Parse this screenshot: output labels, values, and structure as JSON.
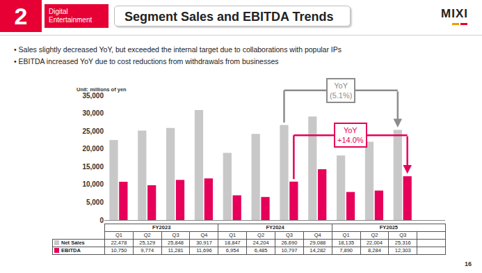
{
  "slide": {
    "section_number": "2",
    "section": "Digital Entertainment",
    "title": "Segment Sales and EBITDA Trends",
    "logo": "MIXI",
    "bullets": [
      "• Sales slightly decreased YoY, but exceeded the internal target due to collaborations with popular IPs",
      "• EBITDA increased YoY due to cost reductions from withdrawals from businesses"
    ],
    "page_number": "16"
  },
  "chart_data": {
    "type": "bar",
    "ylabel": "Unit: millions of yen",
    "categories": [
      "Q1",
      "Q2",
      "Q3",
      "Q4",
      "Q1",
      "Q2",
      "Q3",
      "Q4",
      "Q1",
      "Q2",
      "Q3",
      null
    ],
    "x_groups": [
      "FY2023",
      "FY2023",
      "FY2023",
      "FY2023",
      "FY2024",
      "FY2024",
      "FY2024",
      "FY2024",
      "FY2025",
      "FY2025",
      "FY2025",
      "FY2025"
    ],
    "series": [
      {
        "name": "Net Sales",
        "color": "#c8c8c8",
        "values": [
          22478,
          25129,
          25848,
          30917,
          18847,
          24204,
          26690,
          29088,
          18135,
          22004,
          25316,
          null
        ],
        "value_labels": [
          "22,478",
          "25,129",
          "25,848",
          "30,917",
          "18,847",
          "24,204",
          "26,690",
          "29,088",
          "18,135",
          "22,004",
          "25,316",
          null
        ]
      },
      {
        "name": "EBITDA",
        "color": "#e6005a",
        "values": [
          10750,
          9774,
          11281,
          11696,
          6954,
          6485,
          10797,
          14282,
          7890,
          8284,
          12303,
          null
        ],
        "value_labels": [
          "10,750",
          "9,774",
          "11,281",
          "11,696",
          "6,954",
          "6,485",
          "10,797",
          "14,282",
          "7,890",
          "8,284",
          "12,303",
          null
        ]
      }
    ],
    "ylim": [
      0,
      35000
    ],
    "yticks": [
      0,
      {
        "value": 5000,
        "label": "5,000"
      },
      {
        "value": 10000,
        "label": "10,000"
      },
      {
        "value": 15000,
        "label": "15,000"
      },
      {
        "value": 20000,
        "label": "20,000"
      },
      {
        "value": 25000,
        "label": "25,000"
      },
      {
        "value": 30000,
        "label": "30,000"
      },
      {
        "value": 35000,
        "label": "35,000"
      }
    ],
    "grid": false,
    "tick_labels": "y",
    "annotations": [
      {
        "text": [
          "YoY",
          "(5.1%)"
        ],
        "series": "Net Sales",
        "from": 6,
        "to": 10,
        "color": "#8c8c8c"
      },
      {
        "text": [
          "YoY",
          "+14.0%"
        ],
        "series": "EBITDA",
        "from": 6,
        "to": 10,
        "color": "#e6005a"
      }
    ]
  }
}
